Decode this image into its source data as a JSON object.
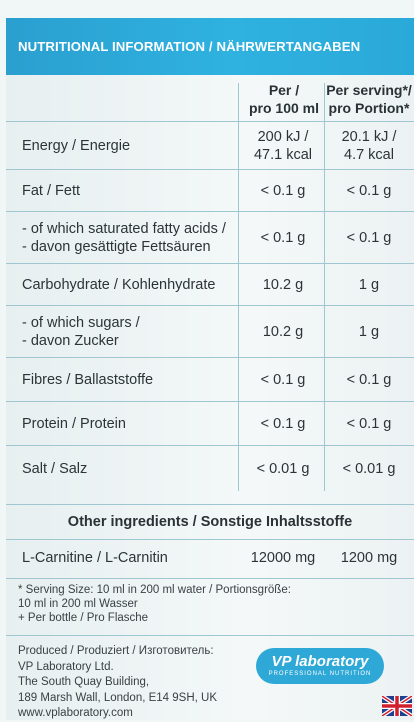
{
  "header": {
    "title": "NUTRITIONAL INFORMATION / NÄHRWERTANGABEN"
  },
  "columns": {
    "per100_line1": "Per /",
    "per100_line2": "pro 100 ml",
    "serving_line1": "Per serving*/",
    "serving_line2": "pro Portion*"
  },
  "rows": [
    {
      "label1": "Energy / Energie",
      "label2": "",
      "v1a": "200 kJ /",
      "v1b": "47.1 kcal",
      "v2a": "20.1 kJ /",
      "v2b": "4.7 kcal"
    },
    {
      "label1": "Fat / Fett",
      "label2": "",
      "v1a": "< 0.1 g",
      "v1b": "",
      "v2a": "< 0.1 g",
      "v2b": ""
    },
    {
      "label1": "- of which saturated fatty acids /",
      "label2": "- davon gesättigte Fettsäuren",
      "v1a": "< 0.1 g",
      "v1b": "",
      "v2a": "< 0.1 g",
      "v2b": ""
    },
    {
      "label1": "Carbohydrate / Kohlenhydrate",
      "label2": "",
      "v1a": "10.2 g",
      "v1b": "",
      "v2a": "1 g",
      "v2b": ""
    },
    {
      "label1": "- of which sugars /",
      "label2": "- davon Zucker",
      "v1a": "10.2 g",
      "v1b": "",
      "v2a": "1 g",
      "v2b": ""
    },
    {
      "label1": "Fibres / Ballaststoffe",
      "label2": "",
      "v1a": "< 0.1 g",
      "v1b": "",
      "v2a": "< 0.1 g",
      "v2b": ""
    },
    {
      "label1": "Protein / Protein",
      "label2": "",
      "v1a": "< 0.1 g",
      "v1b": "",
      "v2a": "< 0.1 g",
      "v2b": ""
    },
    {
      "label1": "Salt / Salz",
      "label2": "",
      "v1a": "< 0.01 g",
      "v1b": "",
      "v2a": "< 0.01 g",
      "v2b": ""
    }
  ],
  "other": {
    "title": "Other ingredients / Sonstige Inhaltsstoffe",
    "label": "L-Carnitine / L-Carnitin",
    "v1": "12000 mg",
    "v2": "1200 mg"
  },
  "footnotes": {
    "line1": "* Serving Size: 10 ml in 200 ml water / Portionsgröße:",
    "line2": "10 ml in 200 ml Wasser",
    "line3": "+ Per bottle / Pro Flasche"
  },
  "producer": {
    "line1": "Produced / Produziert / Изготовитель:",
    "line2": "VP Laboratory Ltd.",
    "line3": "The South Quay Building,",
    "line4": "189 Marsh Wall, London, E14 9SH, UK",
    "line5": "www.vplaboratory.com"
  },
  "logo": {
    "main": "VP laboratory",
    "sub": "PROFESSIONAL NUTRITION"
  },
  "colors": {
    "header_blue": "#2fb2e0",
    "rule": "#9fc7d2",
    "logo_blue": "#2ea8d6"
  },
  "icons": {
    "flag": "uk-flag-icon"
  }
}
